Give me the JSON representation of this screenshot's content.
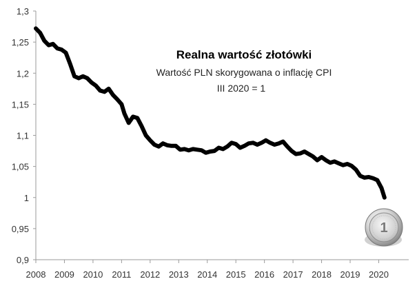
{
  "chart_data": {
    "type": "line",
    "title": "Realna wartość złotówki",
    "subtitle": "Wartość PLN skorygowana o inflację CPI",
    "subtitle2": "III 2020 = 1",
    "xlabel": "",
    "ylabel": "",
    "xlim": [
      2008,
      2021.05
    ],
    "ylim": [
      0.9,
      1.3
    ],
    "grid": false,
    "legend": "none",
    "x_ticks": [
      "2008",
      "2009",
      "2010",
      "2011",
      "2012",
      "2013",
      "2014",
      "2015",
      "2016",
      "2017",
      "2018",
      "2019",
      "2020"
    ],
    "y_ticks": [
      "0,9",
      "0,95",
      "1",
      "1,05",
      "1,1",
      "1,15",
      "1,2",
      "1,25",
      "1,3"
    ],
    "line_color": "#000000",
    "coin_icon": "polish-1-zloty-coin",
    "series": [
      {
        "name": "",
        "x": [
          2008.0,
          2008.15,
          2008.3,
          2008.45,
          2008.6,
          2008.75,
          2008.9,
          2009.05,
          2009.2,
          2009.35,
          2009.5,
          2009.65,
          2009.8,
          2009.95,
          2010.1,
          2010.25,
          2010.4,
          2010.55,
          2010.7,
          2010.85,
          2011.0,
          2011.1,
          2011.25,
          2011.4,
          2011.55,
          2011.7,
          2011.85,
          2012.0,
          2012.15,
          2012.3,
          2012.45,
          2012.6,
          2012.75,
          2012.9,
          2013.05,
          2013.2,
          2013.35,
          2013.5,
          2013.65,
          2013.8,
          2013.95,
          2014.1,
          2014.25,
          2014.4,
          2014.55,
          2014.7,
          2014.85,
          2015.0,
          2015.15,
          2015.3,
          2015.45,
          2015.6,
          2015.75,
          2015.9,
          2016.05,
          2016.2,
          2016.35,
          2016.5,
          2016.65,
          2016.8,
          2016.95,
          2017.1,
          2017.25,
          2017.4,
          2017.55,
          2017.7,
          2017.85,
          2018.0,
          2018.15,
          2018.3,
          2018.45,
          2018.6,
          2018.75,
          2018.9,
          2019.05,
          2019.2,
          2019.35,
          2019.5,
          2019.65,
          2019.8,
          2019.95,
          2020.1,
          2020.2
        ],
        "values": [
          1.272,
          1.265,
          1.252,
          1.245,
          1.247,
          1.24,
          1.238,
          1.233,
          1.215,
          1.195,
          1.192,
          1.195,
          1.192,
          1.185,
          1.18,
          1.172,
          1.17,
          1.175,
          1.165,
          1.158,
          1.15,
          1.135,
          1.12,
          1.13,
          1.128,
          1.115,
          1.1,
          1.092,
          1.085,
          1.082,
          1.087,
          1.084,
          1.083,
          1.083,
          1.077,
          1.078,
          1.076,
          1.078,
          1.077,
          1.076,
          1.072,
          1.074,
          1.075,
          1.08,
          1.078,
          1.082,
          1.088,
          1.086,
          1.08,
          1.083,
          1.087,
          1.088,
          1.085,
          1.088,
          1.092,
          1.088,
          1.085,
          1.087,
          1.09,
          1.082,
          1.075,
          1.07,
          1.071,
          1.074,
          1.07,
          1.066,
          1.06,
          1.065,
          1.06,
          1.056,
          1.058,
          1.055,
          1.052,
          1.054,
          1.051,
          1.045,
          1.035,
          1.032,
          1.033,
          1.031,
          1.028,
          1.015,
          1.0
        ]
      }
    ]
  }
}
